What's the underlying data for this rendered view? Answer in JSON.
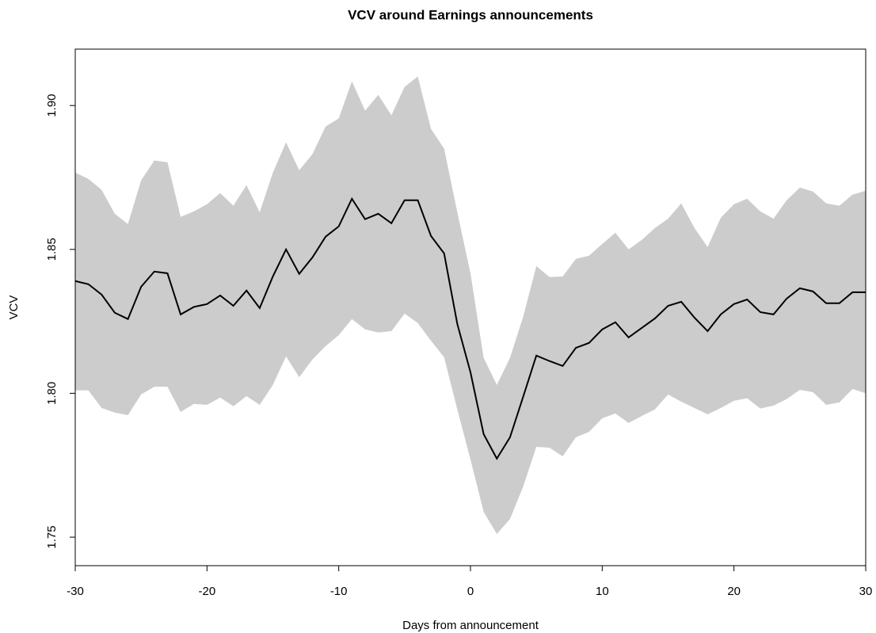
{
  "chart_data": {
    "type": "line",
    "title": "VCV around Earnings announcements",
    "x_label": "Days from announcement",
    "y_label": "VCV",
    "x": [
      -30,
      -29,
      -28,
      -27,
      -26,
      -25,
      -24,
      -23,
      -22,
      -21,
      -20,
      -19,
      -18,
      -17,
      -16,
      -15,
      -14,
      -13,
      -12,
      -11,
      -10,
      -9,
      -8,
      -7,
      -6,
      -5,
      -4,
      -3,
      -2,
      -1,
      0,
      1,
      2,
      3,
      4,
      5,
      6,
      7,
      8,
      9,
      10,
      11,
      12,
      13,
      14,
      15,
      16,
      17,
      18,
      19,
      20,
      21,
      22,
      23,
      24,
      25,
      26,
      27,
      28,
      29,
      30
    ],
    "values": [
      1.839,
      1.8379,
      1.8343,
      1.828,
      1.8258,
      1.837,
      1.8423,
      1.8417,
      1.8274,
      1.83,
      1.831,
      1.834,
      1.8304,
      1.8357,
      1.8296,
      1.8406,
      1.85,
      1.8415,
      1.8472,
      1.8544,
      1.858,
      1.8676,
      1.8605,
      1.8624,
      1.8591,
      1.8671,
      1.8671,
      1.8547,
      1.8486,
      1.8241,
      1.8073,
      1.7858,
      1.7773,
      1.7847,
      1.7988,
      1.8131,
      1.8112,
      1.8095,
      1.8158,
      1.8175,
      1.8222,
      1.8247,
      1.8194,
      1.8227,
      1.826,
      1.8304,
      1.8318,
      1.8263,
      1.8216,
      1.8274,
      1.831,
      1.8326,
      1.8282,
      1.8274,
      1.8329,
      1.8365,
      1.8354,
      1.8313,
      1.8313,
      1.8351,
      1.8351
    ],
    "upper": [
      1.8767,
      1.8745,
      1.8707,
      1.8624,
      1.8588,
      1.874,
      1.8809,
      1.8803,
      1.8613,
      1.8632,
      1.8657,
      1.8696,
      1.8652,
      1.8723,
      1.8629,
      1.8767,
      1.8872,
      1.8775,
      1.8831,
      1.8927,
      1.8955,
      1.9084,
      1.8982,
      1.9037,
      1.8966,
      1.9065,
      1.9101,
      1.8919,
      1.885,
      1.8629,
      1.8417,
      1.8123,
      1.8029,
      1.8123,
      1.8266,
      1.8442,
      1.8404,
      1.8406,
      1.8467,
      1.8478,
      1.8519,
      1.8558,
      1.85,
      1.8533,
      1.8574,
      1.8607,
      1.866,
      1.8574,
      1.8508,
      1.861,
      1.8657,
      1.8676,
      1.8632,
      1.8607,
      1.8671,
      1.8715,
      1.8701,
      1.866,
      1.8652,
      1.869,
      1.8704
    ],
    "lower": [
      1.801,
      1.801,
      1.7949,
      1.7933,
      1.7924,
      1.7996,
      1.8023,
      1.8023,
      1.7935,
      1.7963,
      1.796,
      1.7985,
      1.7955,
      1.799,
      1.796,
      1.8029,
      1.8128,
      1.8056,
      1.8117,
      1.8164,
      1.8202,
      1.8258,
      1.8222,
      1.8211,
      1.8216,
      1.8277,
      1.8244,
      1.8183,
      1.8125,
      1.7944,
      1.777,
      1.7588,
      1.7511,
      1.7563,
      1.7676,
      1.7814,
      1.7811,
      1.7781,
      1.7847,
      1.7866,
      1.7913,
      1.793,
      1.7897,
      1.7921,
      1.7944,
      1.7996,
      1.7971,
      1.7949,
      1.7927,
      1.7949,
      1.7974,
      1.7983,
      1.7947,
      1.7957,
      1.798,
      1.8012,
      1.8004,
      1.796,
      1.7968,
      1.8015,
      1.8
    ],
    "color": "#000000",
    "band_color": "#cccccc",
    "xlim": [
      -30,
      30
    ],
    "xticks": [
      -30,
      -20,
      -10,
      0,
      10,
      20,
      30
    ],
    "ylim": [
      1.7401,
      1.9196
    ],
    "yticks": [
      1.75,
      {
        "value": 1.8,
        "label": "1.80"
      },
      1.85,
      {
        "value": 1.9,
        "label": "1.90"
      }
    ]
  }
}
